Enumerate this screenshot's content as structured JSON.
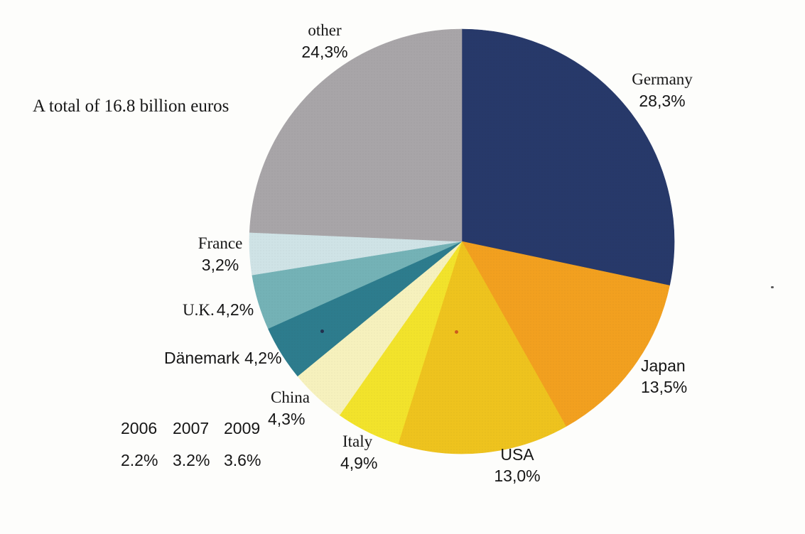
{
  "chart_data": {
    "type": "pie",
    "title": "A total of 16.8 billion euros",
    "total_label": "16.8 billion euros",
    "start_angle_deg": 0,
    "direction": "clockwise",
    "legend_position": "around-slices",
    "slices": [
      {
        "label": "Germany",
        "value_pct": 28.3,
        "display": "28,3%",
        "color": "#27396a"
      },
      {
        "label": "Japan",
        "value_pct": 13.5,
        "display": "13,5%",
        "color": "#f2a01f"
      },
      {
        "label": "USA",
        "value_pct": 13.0,
        "display": "13,0%",
        "color": "#eec31e"
      },
      {
        "label": "Italy",
        "value_pct": 4.9,
        "display": "4,9%",
        "color": "#f2e32b"
      },
      {
        "label": "China",
        "value_pct": 4.3,
        "display": "4,3%",
        "color": "#f6f1bd"
      },
      {
        "label": "Dänemark",
        "value_pct": 4.2,
        "display": "4,2%",
        "color": "#2d7c8d"
      },
      {
        "label": "U.K.",
        "value_pct": 4.2,
        "display": "4,2%",
        "color": "#74b2b6"
      },
      {
        "label": "France",
        "value_pct": 3.2,
        "display": "3,2%",
        "color": "#cfe3e6"
      },
      {
        "label": "other",
        "value_pct": 24.3,
        "display": "24,3%",
        "color": "#a8a5a8"
      }
    ],
    "annotation_table": {
      "years": [
        "2006",
        "2007",
        "2009"
      ],
      "values": [
        "2.2%",
        "3.2%",
        "3.6%"
      ]
    }
  }
}
